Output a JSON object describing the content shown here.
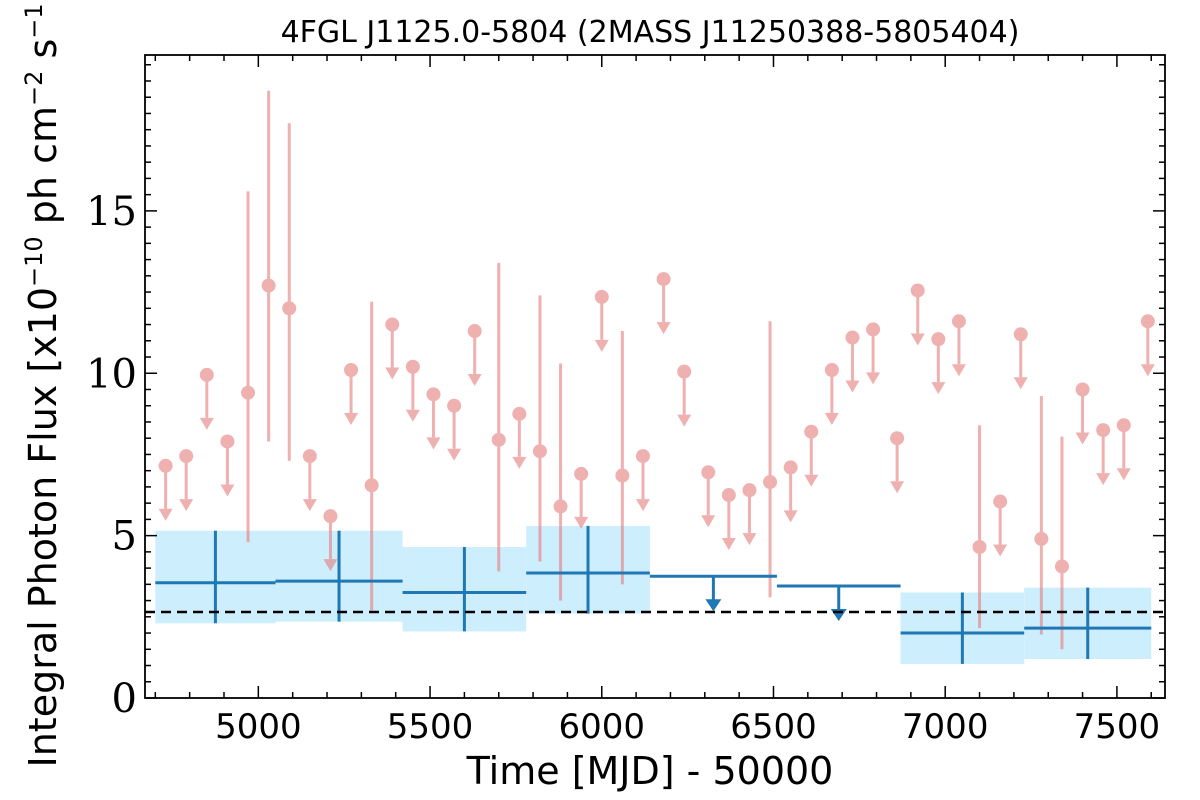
{
  "chart_data": {
    "type": "scatter",
    "title": "4FGL J1125.0-5804 (2MASS J11250388-5805404)",
    "xlabel": "Time [MJD] - 50000",
    "ylabel_parts": {
      "pre": "Integral Photon Flux [x10",
      "exp1": "−10",
      "mid": " ph cm",
      "exp2": "−2",
      "mid2": " s",
      "exp3": "−1",
      "post": "]"
    },
    "xlim": [
      4670,
      7640
    ],
    "ylim": [
      0,
      19.8
    ],
    "xticks": [
      5000,
      5500,
      6000,
      6500,
      7000,
      7500
    ],
    "xtick_labels": [
      "5000",
      "5500",
      "6000",
      "6500",
      "7000",
      "7500"
    ],
    "yticks": [
      0,
      5,
      10,
      15
    ],
    "ytick_labels": [
      "0",
      "5",
      "10",
      "15"
    ],
    "grid": false,
    "mean_flux": 2.65,
    "colors": {
      "short_bins": "#e67c7c",
      "long_bins": "#1f77b4",
      "band": "#cdeefc",
      "mean": "#000000"
    },
    "long_bins": [
      {
        "x0": 4700,
        "x1": 5050,
        "y": 3.55,
        "lo": 2.3,
        "hi": 5.15,
        "ul": false
      },
      {
        "x0": 5050,
        "x1": 5420,
        "y": 3.6,
        "lo": 2.35,
        "hi": 5.15,
        "ul": false
      },
      {
        "x0": 5420,
        "x1": 5780,
        "y": 3.25,
        "lo": 2.05,
        "hi": 4.65,
        "ul": false
      },
      {
        "x0": 5780,
        "x1": 6140,
        "y": 3.85,
        "lo": 2.6,
        "hi": 5.3,
        "ul": false
      },
      {
        "x0": 6140,
        "x1": 6510,
        "y": 3.75,
        "ul": true
      },
      {
        "x0": 6510,
        "x1": 6870,
        "y": 3.45,
        "ul": true
      },
      {
        "x0": 6870,
        "x1": 7230,
        "y": 2.0,
        "lo": 1.05,
        "hi": 3.25,
        "ul": false
      },
      {
        "x0": 7230,
        "x1": 7600,
        "y": 2.15,
        "lo": 1.2,
        "hi": 3.4,
        "ul": false
      }
    ],
    "short_bins": [
      {
        "x": 4730,
        "y": 7.15,
        "ul": true
      },
      {
        "x": 4790,
        "y": 7.45,
        "ul": true
      },
      {
        "x": 4850,
        "y": 9.95,
        "ul": true
      },
      {
        "x": 4910,
        "y": 7.9,
        "ul": true
      },
      {
        "x": 4970,
        "y": 9.4,
        "lo": 4.8,
        "hi": 15.6,
        "ul": false
      },
      {
        "x": 5030,
        "y": 12.7,
        "lo": 7.9,
        "hi": 18.7,
        "ul": false
      },
      {
        "x": 5090,
        "y": 12.0,
        "lo": 7.3,
        "hi": 17.7,
        "ul": false
      },
      {
        "x": 5150,
        "y": 7.45,
        "ul": true
      },
      {
        "x": 5210,
        "y": 5.6,
        "ul": true
      },
      {
        "x": 5270,
        "y": 10.1,
        "ul": true
      },
      {
        "x": 5330,
        "y": 6.55,
        "lo": 2.7,
        "hi": 12.2,
        "ul": false
      },
      {
        "x": 5390,
        "y": 11.5,
        "ul": true
      },
      {
        "x": 5450,
        "y": 10.2,
        "ul": true
      },
      {
        "x": 5510,
        "y": 9.35,
        "ul": true
      },
      {
        "x": 5570,
        "y": 9.0,
        "ul": true
      },
      {
        "x": 5630,
        "y": 11.3,
        "ul": true
      },
      {
        "x": 5700,
        "y": 7.95,
        "lo": 3.9,
        "hi": 13.4,
        "ul": false
      },
      {
        "x": 5760,
        "y": 8.75,
        "ul": true
      },
      {
        "x": 5820,
        "y": 7.6,
        "lo": 4.2,
        "hi": 12.4,
        "ul": false
      },
      {
        "x": 5880,
        "y": 5.9,
        "lo": 3.0,
        "hi": 10.3,
        "ul": false
      },
      {
        "x": 5940,
        "y": 6.9,
        "ul": true
      },
      {
        "x": 6000,
        "y": 12.35,
        "ul": true
      },
      {
        "x": 6060,
        "y": 6.85,
        "lo": 3.5,
        "hi": 11.3,
        "ul": false
      },
      {
        "x": 6120,
        "y": 7.45,
        "ul": true
      },
      {
        "x": 6180,
        "y": 12.9,
        "ul": true
      },
      {
        "x": 6240,
        "y": 10.05,
        "ul": true
      },
      {
        "x": 6310,
        "y": 6.95,
        "ul": true
      },
      {
        "x": 6370,
        "y": 6.25,
        "ul": true
      },
      {
        "x": 6430,
        "y": 6.4,
        "ul": true
      },
      {
        "x": 6490,
        "y": 6.65,
        "lo": 3.1,
        "hi": 11.6,
        "ul": false
      },
      {
        "x": 6550,
        "y": 7.1,
        "ul": true
      },
      {
        "x": 6610,
        "y": 8.2,
        "ul": true
      },
      {
        "x": 6670,
        "y": 10.1,
        "ul": true
      },
      {
        "x": 6730,
        "y": 11.1,
        "ul": true
      },
      {
        "x": 6790,
        "y": 11.35,
        "ul": true
      },
      {
        "x": 6860,
        "y": 8.0,
        "ul": true
      },
      {
        "x": 6920,
        "y": 12.55,
        "ul": true
      },
      {
        "x": 6980,
        "y": 11.05,
        "ul": true
      },
      {
        "x": 7040,
        "y": 11.6,
        "ul": true
      },
      {
        "x": 7100,
        "y": 4.65,
        "lo": 2.15,
        "hi": 8.4,
        "ul": false
      },
      {
        "x": 7160,
        "y": 6.05,
        "ul": true
      },
      {
        "x": 7220,
        "y": 11.2,
        "ul": true
      },
      {
        "x": 7280,
        "y": 4.9,
        "lo": 1.95,
        "hi": 9.3,
        "ul": false
      },
      {
        "x": 7340,
        "y": 4.05,
        "lo": 1.5,
        "hi": 8.05,
        "ul": false
      },
      {
        "x": 7400,
        "y": 9.5,
        "ul": true
      },
      {
        "x": 7460,
        "y": 8.25,
        "ul": true
      },
      {
        "x": 7520,
        "y": 8.4,
        "ul": true
      },
      {
        "x": 7590,
        "y": 11.6,
        "ul": true
      }
    ]
  }
}
